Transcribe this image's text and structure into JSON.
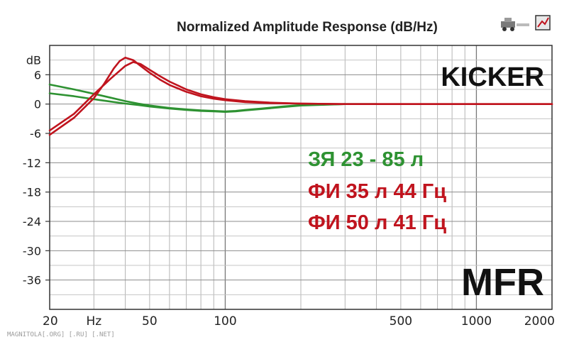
{
  "chart_data": {
    "type": "line",
    "title": "Normalized Amplitude Response (dB/Hz)",
    "xscale": "log",
    "xlim": [
      20,
      2000
    ],
    "ylim": [
      -42,
      12
    ],
    "y_unit_label": "dB",
    "x_unit_label": "Hz",
    "x_ticks": [
      20,
      50,
      100,
      500,
      1000,
      2000
    ],
    "y_ticks": [
      6,
      0,
      -6,
      -12,
      -18,
      -24,
      -30,
      -36
    ],
    "grid": true,
    "series": [
      {
        "name": "ЗЯ 23 - 85 л",
        "color": "#2e9232",
        "x": [
          20,
          25,
          30,
          35,
          40,
          45,
          50,
          60,
          70,
          80,
          90,
          100,
          110,
          120,
          140,
          170,
          200,
          300,
          400
        ],
        "y": [
          2.2,
          1.6,
          1.0,
          0.5,
          0.1,
          -0.2,
          -0.5,
          -0.9,
          -1.2,
          -1.4,
          -1.5,
          -1.6,
          -1.5,
          -1.3,
          -1.0,
          -0.6,
          -0.3,
          0.0,
          0.0
        ]
      },
      {
        "name": "ЗЯ 23 - 85 л",
        "color": "#2e9232",
        "x": [
          20,
          25,
          30,
          35,
          40,
          45,
          50,
          60,
          70,
          80,
          90,
          100,
          110,
          120,
          140,
          170,
          200,
          300
        ],
        "y": [
          4.0,
          3.0,
          2.1,
          1.3,
          0.6,
          0.1,
          -0.3,
          -0.8,
          -1.1,
          -1.3,
          -1.4,
          -1.5,
          -1.4,
          -1.2,
          -0.9,
          -0.5,
          -0.2,
          0.0
        ]
      },
      {
        "name": "ФИ 35 л 44 Гц",
        "color": "#c0141e",
        "x": [
          20,
          25,
          30,
          33,
          36,
          38,
          40,
          43,
          46,
          50,
          55,
          60,
          70,
          80,
          90,
          100,
          120,
          150,
          200,
          300,
          500,
          1000,
          2000
        ],
        "y": [
          -6.3,
          -2.8,
          1.2,
          4.2,
          7.3,
          8.8,
          9.5,
          9.0,
          7.8,
          6.4,
          5.0,
          3.9,
          2.5,
          1.6,
          1.1,
          0.8,
          0.4,
          0.2,
          0.1,
          0.0,
          0.0,
          0.0,
          0.0
        ]
      },
      {
        "name": "ФИ 50 л 41 Гц",
        "color": "#c0141e",
        "x": [
          20,
          25,
          30,
          35,
          40,
          43,
          46,
          50,
          55,
          60,
          70,
          80,
          90,
          100,
          120,
          150,
          200,
          300,
          500,
          1000,
          2000
        ],
        "y": [
          -5.4,
          -2.0,
          2.0,
          5.2,
          7.8,
          8.6,
          8.2,
          7.0,
          5.7,
          4.6,
          3.0,
          2.0,
          1.4,
          1.0,
          0.6,
          0.3,
          0.1,
          0.0,
          0.0,
          0.0,
          0.0
        ]
      }
    ]
  },
  "legend": [
    {
      "text": "ЗЯ 23 - 85 л",
      "color": "#2e9232"
    },
    {
      "text": "ФИ 35 л 44 Гц",
      "color": "#c0141e"
    },
    {
      "text": "ФИ 50 л 41 Гц",
      "color": "#c0141e"
    }
  ],
  "brand": "KICKER",
  "test_label": "MFR",
  "watermark": "MAGNITOLA[.ORG] [.RU] [.NET]",
  "icons": [
    "toolbar-car-icon",
    "toolbar-chart-icon"
  ]
}
